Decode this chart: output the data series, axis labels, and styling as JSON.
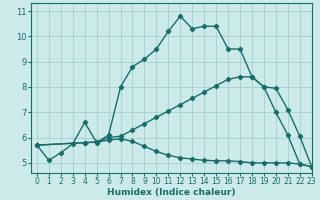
{
  "xlabel": "Humidex (Indice chaleur)",
  "bg_color": "#cceaea",
  "grid_color": "#aad4d4",
  "line_color": "#1a6b6b",
  "xlim": [
    -0.5,
    23
  ],
  "ylim": [
    4.6,
    11.3
  ],
  "xticks": [
    0,
    1,
    2,
    3,
    4,
    5,
    6,
    7,
    8,
    9,
    10,
    11,
    12,
    13,
    14,
    15,
    16,
    17,
    18,
    19,
    20,
    21,
    22,
    23
  ],
  "yticks": [
    5,
    6,
    7,
    8,
    9,
    10,
    11
  ],
  "line1_x": [
    0,
    1,
    2,
    3,
    4,
    5,
    6,
    7,
    8,
    9,
    10,
    11,
    12,
    13,
    14,
    15,
    16,
    17,
    18,
    19,
    20,
    21,
    22,
    23
  ],
  "line1_y": [
    5.7,
    5.1,
    5.4,
    5.75,
    6.6,
    5.8,
    6.1,
    8.0,
    8.8,
    9.1,
    9.5,
    10.2,
    10.8,
    10.3,
    10.4,
    10.4,
    9.5,
    9.5,
    8.4,
    8.0,
    7.0,
    6.1,
    4.95,
    4.85
  ],
  "line2_x": [
    0,
    4,
    5,
    6,
    7,
    8,
    9,
    10,
    11,
    12,
    13,
    14,
    15,
    16,
    17,
    18,
    19,
    20,
    21,
    22,
    23
  ],
  "line2_y": [
    5.7,
    5.8,
    5.82,
    6.0,
    6.05,
    6.3,
    6.55,
    6.8,
    7.05,
    7.3,
    7.55,
    7.8,
    8.05,
    8.3,
    8.4,
    8.4,
    8.0,
    7.95,
    7.1,
    6.05,
    4.85
  ],
  "line3_x": [
    0,
    4,
    5,
    6,
    7,
    8,
    9,
    10,
    11,
    12,
    13,
    14,
    15,
    16,
    17,
    18,
    19,
    20,
    21,
    22,
    23
  ],
  "line3_y": [
    5.7,
    5.8,
    5.82,
    5.9,
    5.95,
    5.85,
    5.65,
    5.45,
    5.3,
    5.2,
    5.15,
    5.1,
    5.08,
    5.08,
    5.05,
    5.0,
    5.0,
    5.0,
    5.0,
    4.95,
    4.85
  ]
}
